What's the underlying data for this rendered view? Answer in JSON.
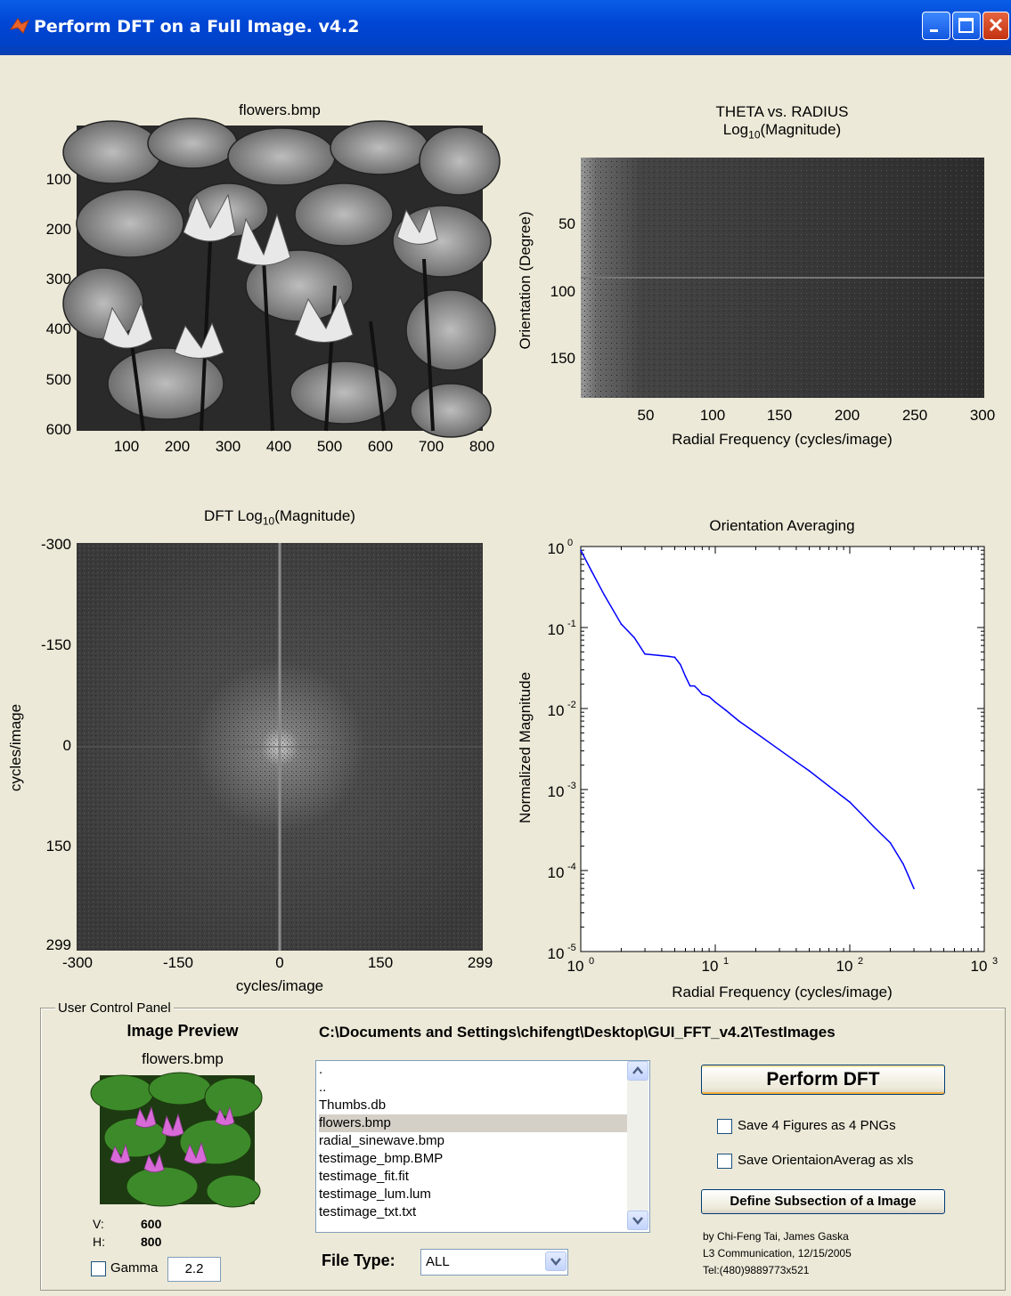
{
  "window": {
    "title": "Perform DFT on a Full Image.  v4.2",
    "accent": "#0046d5",
    "controls": [
      "minimize-icon",
      "maximize-icon",
      "close-icon"
    ]
  },
  "plot_image": {
    "title": "flowers.bmp",
    "yticks": [
      "100",
      "200",
      "300",
      "400",
      "500",
      "600"
    ],
    "xticks": [
      "100",
      "200",
      "300",
      "400",
      "500",
      "600",
      "700",
      "800"
    ]
  },
  "plot_theta": {
    "title_line1": "THETA vs. RADIUS",
    "title_line2_prefix": "Log",
    "title_line2_sub": "10",
    "title_line2_suffix": "(Magnitude)",
    "ylabel": "Orientation (Degree)",
    "xlabel": "Radial Frequency (cycles/image)",
    "yticks": [
      "50",
      "100",
      "150"
    ],
    "xticks": [
      "50",
      "100",
      "150",
      "200",
      "250",
      "300"
    ]
  },
  "plot_dft": {
    "title_prefix": "DFT Log",
    "title_sub": "10",
    "title_suffix": "(Magnitude)",
    "ylabel": "cycles/image",
    "xlabel": "cycles/image",
    "yticks": [
      "-300",
      "-150",
      "0",
      "150",
      "299"
    ],
    "xticks": [
      "-300",
      "-150",
      "0",
      "150",
      "299"
    ]
  },
  "chart_data": {
    "type": "line",
    "title": "Orientation Averaging",
    "xlabel": "Radial Frequency (cycles/image)",
    "ylabel": "Normalized Magnitude",
    "xscale": "log",
    "yscale": "log",
    "xlim": [
      1,
      1000
    ],
    "ylim": [
      1e-05,
      1
    ],
    "xtick_exponents": [
      "0",
      "1",
      "2",
      "3"
    ],
    "ytick_exponents": [
      "0",
      "-1",
      "-2",
      "-3",
      "-4",
      "-5"
    ],
    "tick_base": "10",
    "series_color": "#0000ff",
    "x": [
      1,
      1.2,
      1.5,
      2,
      2.5,
      3,
      3.5,
      4,
      4.5,
      5,
      5.5,
      6,
      6.5,
      7,
      7.5,
      8,
      9,
      10,
      12,
      15,
      20,
      30,
      40,
      50,
      70,
      100,
      130,
      150,
      200,
      250,
      300
    ],
    "y": [
      0.9,
      0.5,
      0.25,
      0.11,
      0.075,
      0.047,
      0.046,
      0.045,
      0.044,
      0.043,
      0.035,
      0.025,
      0.019,
      0.019,
      0.017,
      0.015,
      0.014,
      0.012,
      0.0095,
      0.007,
      0.005,
      0.0031,
      0.0022,
      0.0017,
      0.0011,
      0.0007,
      0.00045,
      0.00035,
      0.00022,
      0.00012,
      6e-05
    ]
  },
  "control_panel": {
    "label": "User Control Panel",
    "preview_heading": "Image Preview",
    "preview_filename": "flowers.bmp",
    "path": "C:\\Documents and Settings\\chifengt\\Desktop\\GUI_FFT_v4.2\\TestImages",
    "files": [
      ".",
      "..",
      "Thumbs.db",
      "flowers.bmp",
      "radial_sinewave.bmp",
      "testimage_bmp.BMP",
      "testimage_fit.fit",
      "testimage_lum.lum",
      "testimage_txt.txt"
    ],
    "selected_file": "flowers.bmp",
    "v_label": "V:",
    "v_value": "600",
    "h_label": "H:",
    "h_value": "800",
    "gamma_label": "Gamma",
    "gamma_value": "2.2",
    "perform_button": "Perform DFT",
    "save_pngs_label": "Save 4 Figures as 4 PNGs",
    "save_xls_label": "Save OrientaionAverag as xls",
    "subsection_button": "Define Subsection of a Image",
    "filetype_label": "File Type:",
    "filetype_value": "ALL",
    "credit_line1": "by Chi-Feng Tai, James Gaska",
    "credit_line2": "L3 Communication, 12/15/2005",
    "credit_line3": "Tel:(480)9889773x521"
  }
}
